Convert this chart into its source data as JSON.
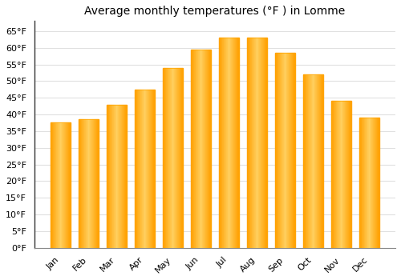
{
  "title": "Average monthly temperatures (°F ) in Lomme",
  "months": [
    "Jan",
    "Feb",
    "Mar",
    "Apr",
    "May",
    "Jun",
    "Jul",
    "Aug",
    "Sep",
    "Oct",
    "Nov",
    "Dec"
  ],
  "values": [
    37.5,
    38.5,
    43,
    47.5,
    54,
    59.5,
    63,
    63,
    58.5,
    52,
    44,
    39
  ],
  "bar_color_center": "#FFD966",
  "bar_color_edge": "#FFA500",
  "background_color": "#FFFFFF",
  "grid_color": "#E0E0E0",
  "ylim": [
    0,
    68
  ],
  "yticks": [
    0,
    5,
    10,
    15,
    20,
    25,
    30,
    35,
    40,
    45,
    50,
    55,
    60,
    65
  ],
  "title_fontsize": 10,
  "tick_fontsize": 8,
  "bar_width": 0.7
}
